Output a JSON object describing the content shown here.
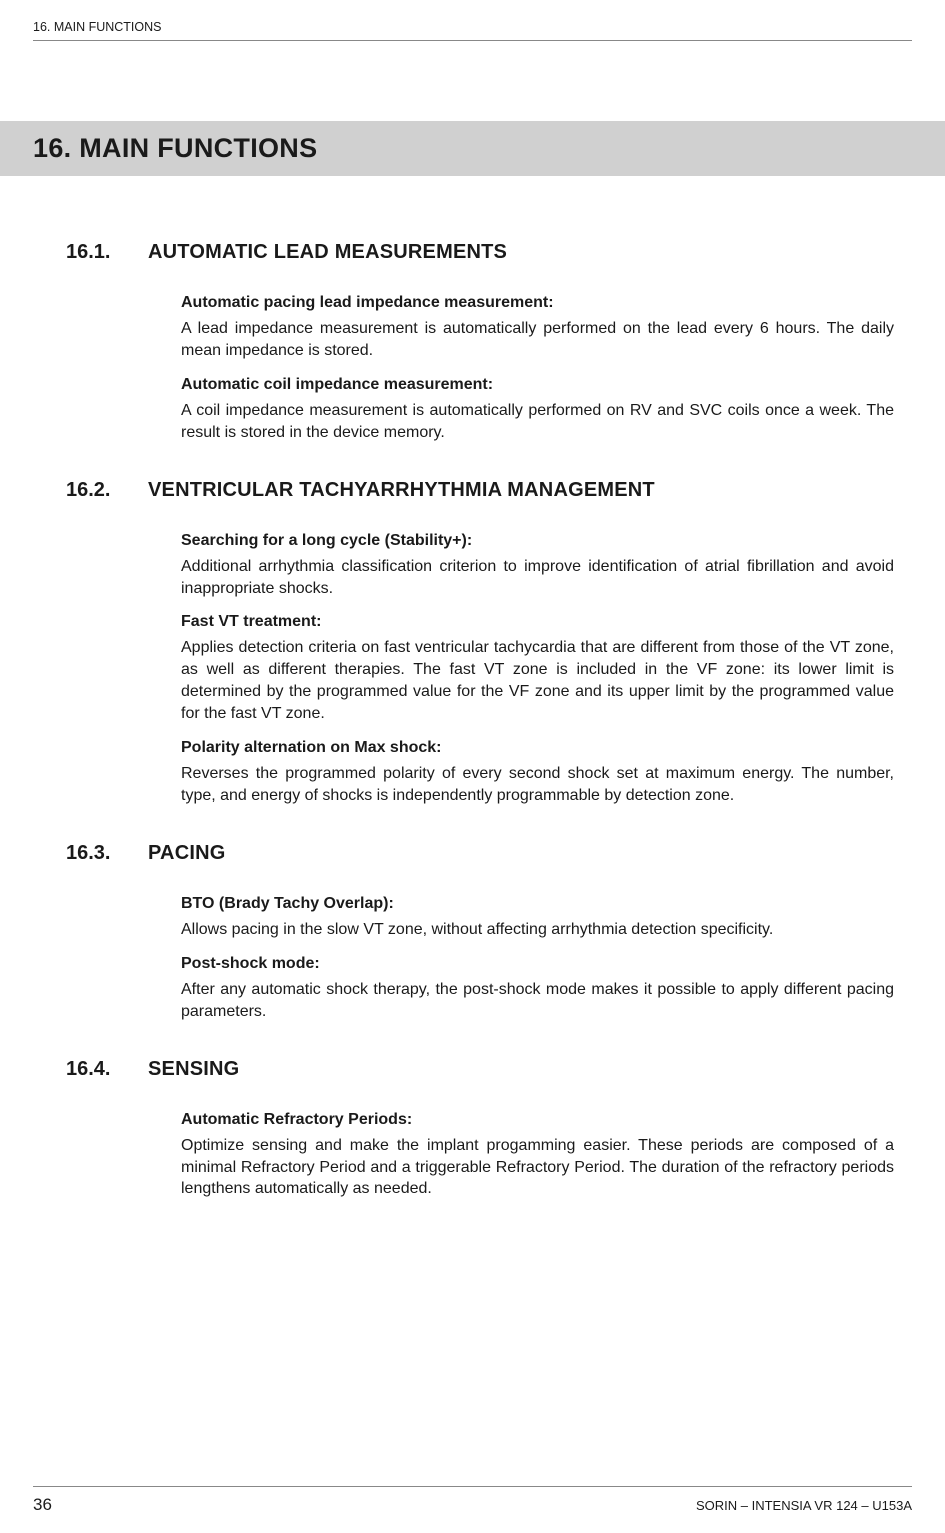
{
  "header": {
    "running": "16.  MAIN FUNCTIONS"
  },
  "chapter": {
    "title": "16.  MAIN FUNCTIONS"
  },
  "s1": {
    "num": "16.1.",
    "title": "AUTOMATIC LEAD MEASUREMENTS",
    "h1": "Automatic pacing lead impedance measurement:",
    "p1": "A lead impedance measurement is automatically performed on the lead every 6 hours. The daily mean impedance is stored.",
    "h2": "Automatic coil impedance measurement:",
    "p2": "A coil impedance measurement is automatically performed on RV and SVC coils once a week. The result is stored in the device memory."
  },
  "s2": {
    "num": "16.2.",
    "title": "VENTRICULAR TACHYARRHYTHMIA MANAGEMENT",
    "h1": "Searching for a long cycle (Stability+):",
    "p1": "Additional arrhythmia classification criterion to improve identification of atrial fibrillation and avoid inappropriate shocks.",
    "h2": "Fast VT treatment:",
    "p2": "Applies detection criteria on fast ventricular tachycardia that are different from those of the VT zone, as well as different therapies. The fast VT zone is included in the VF zone: its lower limit is determined by the programmed value for the VF zone and its upper limit by the programmed value for the fast VT zone.",
    "h3": "Polarity alternation on Max shock:",
    "p3": "Reverses the programmed polarity of every second shock set at maximum energy. The number, type, and energy of shocks is independently programmable by detection zone."
  },
  "s3": {
    "num": "16.3.",
    "title": "PACING",
    "h1": "BTO (Brady Tachy Overlap):",
    "p1": "Allows pacing in the slow VT zone, without affecting arrhythmia detection specificity.",
    "h2": "Post-shock mode:",
    "p2": "After any automatic shock therapy, the post-shock mode makes it possible to apply different pacing parameters."
  },
  "s4": {
    "num": "16.4.",
    "title": "SENSING",
    "h1": "Automatic Refractory Periods:",
    "p1": "Optimize sensing and make the implant progamming easier. These periods are composed of a minimal Refractory Period and a triggerable Refractory Period. The duration of the refractory periods lengthens automatically as needed."
  },
  "footer": {
    "page": "36",
    "right": "SORIN – INTENSIA VR 124 – U153A"
  },
  "colors": {
    "bar_bg": "#d0d0d0",
    "rule": "#888888",
    "text": "#1a1a1a",
    "bg": "#ffffff"
  },
  "typography": {
    "body_pt": 16,
    "h2_pt": 20,
    "h1_pt": 27,
    "header_pt": 12.5,
    "footer_pt": 13,
    "family": "Arial"
  }
}
